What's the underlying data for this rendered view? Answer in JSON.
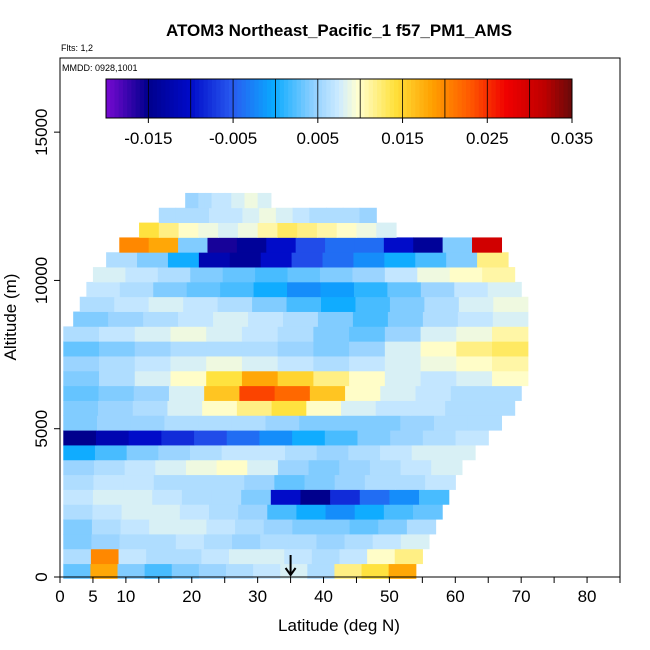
{
  "chart_data": {
    "type": "heatmap",
    "title": "ATOM3 Northeast_Pacific_1 f57_PM1_AMS",
    "flights_note": "Flts: 1,2",
    "dates_note": "MMDD: 0928,1001",
    "xlabel": "Latitude (deg N)",
    "ylabel": "Altitude (m)",
    "xlim": [
      0,
      85
    ],
    "ylim": [
      0,
      17500
    ],
    "x_ticks": [
      0,
      5,
      10,
      20,
      30,
      40,
      50,
      60,
      70,
      80
    ],
    "y_ticks": [
      0,
      5000,
      10000,
      15000
    ],
    "colorbar": {
      "min": -0.02,
      "max": 0.035,
      "tick_values": [
        -0.015,
        -0.005,
        0.005,
        0.015,
        0.025,
        0.035
      ],
      "tick_labels": [
        "-0.015",
        "-0.005",
        "0.005",
        "0.015",
        "0.025",
        "0.035"
      ]
    },
    "marker_latitude": 35,
    "grid": false,
    "bands": [
      {
        "alt": 200,
        "lat_start": 0.5,
        "lat_end": 54,
        "values": [
          0.003,
          0.018,
          0.004,
          0.002,
          0.004,
          0.005,
          0.006,
          0.007,
          0.008,
          0.006,
          0.012,
          0.014,
          0.018
        ]
      },
      {
        "alt": 700,
        "lat_start": 0.5,
        "lat_end": 55,
        "values": [
          0.006,
          0.02,
          0.007,
          0.006,
          0.006,
          0.007,
          0.008,
          0.008,
          0.007,
          0.006,
          0.007,
          0.01,
          0.012
        ]
      },
      {
        "alt": 1200,
        "lat_start": 0.5,
        "lat_end": 56,
        "values": [
          0.004,
          0.005,
          0.006,
          0.006,
          0.007,
          0.006,
          0.005,
          0.006,
          0.006,
          0.005,
          0.006,
          0.007,
          0.008
        ]
      },
      {
        "alt": 1700,
        "lat_start": 0.5,
        "lat_end": 57,
        "values": [
          0.004,
          0.006,
          0.007,
          0.008,
          0.008,
          0.007,
          0.006,
          0.005,
          0.004,
          0.004,
          0.003,
          0.004,
          0.006
        ]
      },
      {
        "alt": 2200,
        "lat_start": 0.5,
        "lat_end": 58,
        "values": [
          0.006,
          0.007,
          0.008,
          0.008,
          0.007,
          0.006,
          0.005,
          0.002,
          0.0,
          -0.002,
          0.0,
          0.002,
          0.003
        ]
      },
      {
        "alt": 2700,
        "lat_start": 0.5,
        "lat_end": 59,
        "values": [
          0.007,
          0.008,
          0.008,
          0.007,
          0.006,
          0.006,
          0.004,
          -0.01,
          -0.015,
          -0.008,
          -0.004,
          -0.002,
          0.002
        ]
      },
      {
        "alt": 3200,
        "lat_start": 0.5,
        "lat_end": 60,
        "values": [
          0.006,
          0.007,
          0.007,
          0.006,
          0.006,
          0.006,
          0.005,
          0.003,
          0.004,
          0.005,
          0.006,
          0.006,
          0.007
        ]
      },
      {
        "alt": 3700,
        "lat_start": 0.5,
        "lat_end": 61,
        "values": [
          0.005,
          0.006,
          0.007,
          0.008,
          0.009,
          0.01,
          0.008,
          0.005,
          0.004,
          0.005,
          0.006,
          0.007,
          0.008
        ]
      },
      {
        "alt": 4200,
        "lat_start": 0.5,
        "lat_end": 63,
        "values": [
          0.0,
          0.002,
          0.004,
          0.005,
          0.006,
          0.007,
          0.007,
          0.006,
          0.005,
          0.006,
          0.007,
          0.008,
          0.008
        ]
      },
      {
        "alt": 4700,
        "lat_start": 0.5,
        "lat_end": 65,
        "values": [
          -0.015,
          -0.012,
          -0.01,
          -0.008,
          -0.006,
          -0.004,
          -0.002,
          0.0,
          0.002,
          0.004,
          0.005,
          0.006,
          0.007
        ]
      },
      {
        "alt": 5200,
        "lat_start": 0.5,
        "lat_end": 67,
        "values": [
          0.004,
          0.005,
          0.005,
          0.006,
          0.006,
          0.006,
          0.005,
          0.004,
          0.004,
          0.004,
          0.005,
          0.006,
          0.006
        ]
      },
      {
        "alt": 5700,
        "lat_start": 0.5,
        "lat_end": 69,
        "values": [
          0.004,
          0.005,
          0.006,
          0.008,
          0.01,
          0.012,
          0.014,
          0.01,
          0.008,
          0.007,
          0.007,
          0.006,
          0.006
        ]
      },
      {
        "alt": 6200,
        "lat_start": 0.5,
        "lat_end": 70,
        "values": [
          0.003,
          0.004,
          0.005,
          0.008,
          0.016,
          0.024,
          0.022,
          0.016,
          0.01,
          0.008,
          0.007,
          0.006,
          0.006
        ]
      },
      {
        "alt": 6700,
        "lat_start": 0.5,
        "lat_end": 71,
        "values": [
          0.004,
          0.006,
          0.008,
          0.01,
          0.014,
          0.018,
          0.015,
          0.012,
          0.01,
          0.008,
          0.007,
          0.008,
          0.01
        ]
      },
      {
        "alt": 7200,
        "lat_start": 0.5,
        "lat_end": 71,
        "values": [
          0.005,
          0.006,
          0.007,
          0.008,
          0.009,
          0.008,
          0.007,
          0.006,
          0.007,
          0.008,
          0.009,
          0.01,
          0.011
        ]
      },
      {
        "alt": 7700,
        "lat_start": 0.5,
        "lat_end": 71,
        "values": [
          0.003,
          0.004,
          0.005,
          0.006,
          0.006,
          0.006,
          0.005,
          0.004,
          0.005,
          0.008,
          0.01,
          0.012,
          0.013
        ]
      },
      {
        "alt": 8200,
        "lat_start": 0.5,
        "lat_end": 71,
        "values": [
          0.006,
          0.007,
          0.008,
          0.009,
          0.008,
          0.007,
          0.006,
          0.004,
          0.003,
          0.005,
          0.008,
          0.009,
          0.011
        ]
      },
      {
        "alt": 8700,
        "lat_start": 2,
        "lat_end": 71,
        "values": [
          0.004,
          0.005,
          0.006,
          0.007,
          0.008,
          0.007,
          0.006,
          0.004,
          0.002,
          0.004,
          0.006,
          0.007,
          0.008
        ]
      },
      {
        "alt": 9200,
        "lat_start": 3,
        "lat_end": 71,
        "values": [
          0.006,
          0.007,
          0.008,
          0.007,
          0.006,
          0.004,
          0.002,
          0.0,
          0.002,
          0.004,
          0.006,
          0.008,
          0.009
        ]
      },
      {
        "alt": 9700,
        "lat_start": 4,
        "lat_end": 70,
        "values": [
          0.007,
          0.006,
          0.004,
          0.003,
          0.002,
          0.0,
          -0.002,
          -0.001,
          0.001,
          0.003,
          0.005,
          0.007,
          0.008
        ]
      },
      {
        "alt": 10200,
        "lat_start": 5,
        "lat_end": 69,
        "values": [
          0.008,
          0.007,
          0.006,
          0.004,
          0.003,
          0.002,
          0.003,
          0.004,
          0.005,
          0.007,
          0.009,
          0.01,
          0.011
        ]
      },
      {
        "alt": 10700,
        "lat_start": 7,
        "lat_end": 68,
        "values": [
          0.006,
          0.004,
          0.0,
          -0.012,
          -0.014,
          -0.01,
          -0.006,
          -0.004,
          -0.002,
          0.0,
          0.002,
          0.004,
          0.012
        ]
      },
      {
        "alt": 11200,
        "lat_start": 9,
        "lat_end": 67,
        "values": [
          0.02,
          0.018,
          0.004,
          -0.016,
          -0.014,
          -0.01,
          -0.006,
          -0.004,
          -0.004,
          -0.01,
          -0.014,
          0.004,
          0.03
        ]
      },
      {
        "alt": 11700,
        "lat_start": 12,
        "lat_end": 51,
        "values": [
          0.014,
          0.012,
          0.01,
          0.009,
          0.008,
          0.009,
          0.011,
          0.013,
          0.012,
          0.011,
          0.01,
          0.009,
          0.008
        ]
      },
      {
        "alt": 12200,
        "lat_start": 15,
        "lat_end": 48,
        "values": [
          0.006,
          0.006,
          0.006,
          0.007,
          0.007,
          0.008,
          0.009,
          0.008,
          0.007,
          0.006,
          0.006,
          0.006,
          0.005
        ]
      },
      {
        "alt": 12700,
        "lat_start": 19,
        "lat_end": 32,
        "values": [
          0.005,
          0.005,
          0.006,
          0.006,
          0.007,
          0.007,
          0.007,
          0.008,
          0.008,
          0.009,
          0.009,
          0.008,
          0.008
        ]
      }
    ]
  }
}
